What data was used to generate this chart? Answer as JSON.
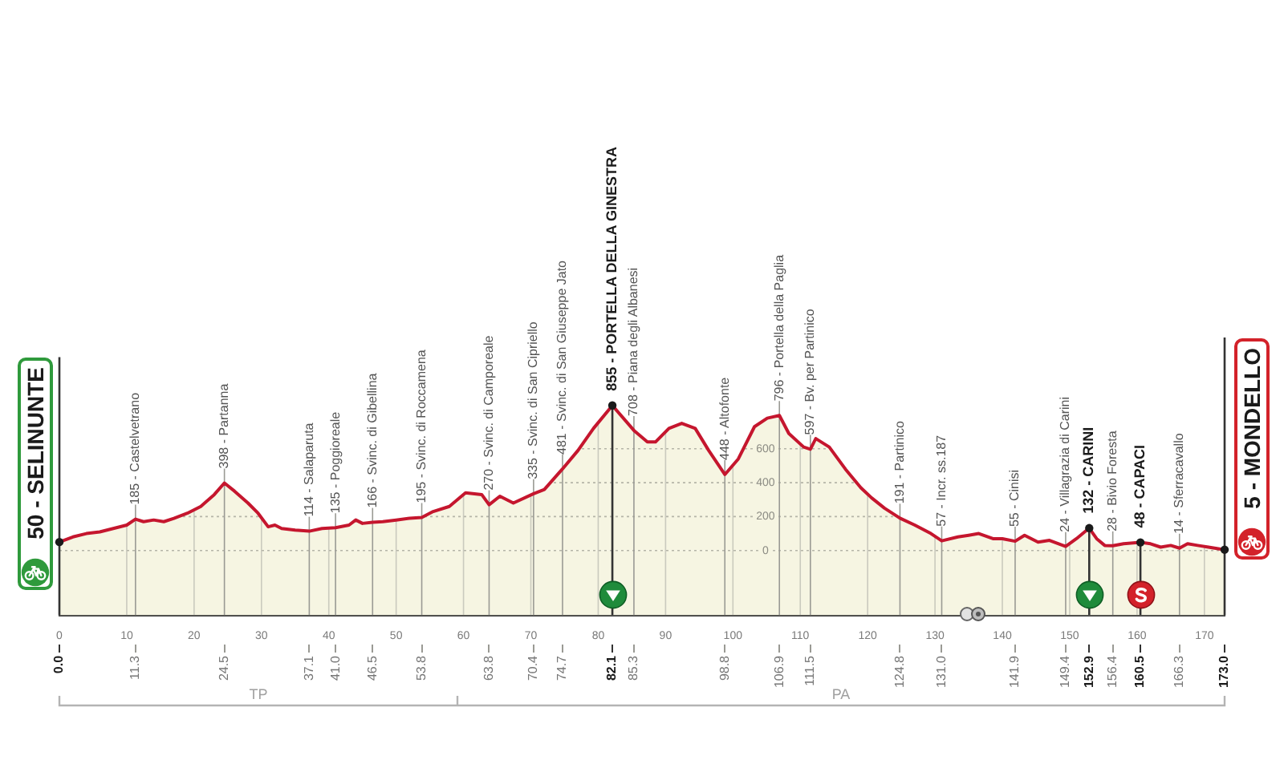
{
  "chart_data": {
    "type": "area",
    "color": "#c5162e",
    "x": [
      0,
      2,
      4,
      6,
      8,
      10,
      11.3,
      12.5,
      14,
      15.5,
      17,
      19,
      21,
      23,
      24.5,
      26,
      28,
      29.5,
      31,
      32,
      33,
      35,
      37.1,
      39,
      41,
      43,
      44,
      45,
      46.5,
      48,
      50,
      52,
      53.8,
      55.5,
      57.9,
      60.3,
      62.7,
      63.8,
      65.4,
      67.4,
      70.4,
      72,
      74.7,
      77,
      79.3,
      82.1,
      85.3,
      87.3,
      88.5,
      90.5,
      92.4,
      94.4,
      96.4,
      98.8,
      100.8,
      103.2,
      105.1,
      106.9,
      108.3,
      110.5,
      111.5,
      112.3,
      114.3,
      116.7,
      119,
      120.6,
      122.5,
      124.8,
      127,
      129.4,
      131,
      133.4,
      135,
      136.5,
      138.6,
      140,
      141.9,
      143.3,
      145.3,
      147,
      149.4,
      151,
      152.9,
      154,
      155.2,
      156.4,
      158,
      160.5,
      162,
      163.5,
      165,
      166.3,
      167.5,
      169,
      170.6,
      173
    ],
    "values": [
      50,
      80,
      100,
      110,
      130,
      150,
      185,
      170,
      180,
      170,
      190,
      220,
      260,
      330,
      398,
      350,
      280,
      220,
      140,
      150,
      130,
      120,
      114,
      130,
      135,
      150,
      180,
      160,
      166,
      170,
      180,
      190,
      195,
      230,
      260,
      340,
      330,
      270,
      320,
      280,
      335,
      360,
      481,
      590,
      720,
      855,
      708,
      640,
      640,
      720,
      750,
      720,
      590,
      448,
      540,
      730,
      780,
      796,
      690,
      610,
      597,
      660,
      610,
      480,
      370,
      310,
      250,
      191,
      150,
      100,
      57,
      80,
      90,
      100,
      70,
      70,
      55,
      90,
      50,
      60,
      24,
      70,
      132,
      70,
      30,
      28,
      40,
      48,
      40,
      20,
      30,
      14,
      40,
      30,
      20,
      5
    ],
    "xlim": [
      0,
      173
    ],
    "xticks": [
      0,
      10,
      20,
      30,
      40,
      50,
      60,
      70,
      80,
      90,
      100,
      110,
      120,
      130,
      140,
      150,
      160,
      170
    ],
    "x2lim": [
      0,
      173
    ],
    "x2ticks": [
      {
        "value": 0,
        "label": "0.0"
      },
      11.3,
      24.5,
      37.1,
      {
        "value": 41,
        "label": "41.0"
      },
      46.5,
      53.8,
      63.8,
      70.4,
      74.7,
      82.1,
      85.3,
      98.8,
      106.9,
      111.5,
      124.8,
      {
        "value": 131,
        "label": "131.0"
      },
      141.9,
      149.4,
      152.9,
      156.4,
      160.5,
      166.3,
      {
        "value": 173,
        "label": "173.0"
      }
    ],
    "ylim": [
      -380,
      2300
    ],
    "yticks": [
      0,
      200,
      400,
      600
    ],
    "grid": true,
    "ref_lines": [
      {
        "axis": "x",
        "value": 0,
        "color": "#333333"
      },
      {
        "axis": "x",
        "value": 82.1,
        "color": "#333333"
      },
      {
        "axis": "x",
        "value": 152.9,
        "color": "#333333"
      },
      {
        "axis": "x",
        "value": 160.5,
        "color": "#333333"
      },
      {
        "axis": "x",
        "value": 173,
        "color": "#333333"
      }
    ],
    "bands": [
      {
        "axis": "y",
        "from": -380,
        "to": 0,
        "color": "#f6f5e2"
      }
    ],
    "annotations": [
      {
        "text": "50 - SELINUNTE",
        "x": 0,
        "y": 50
      },
      {
        "text": "185 - Castelvetrano",
        "x": 11.3,
        "y": 185
      },
      {
        "text": "398 - Partanna",
        "x": 24.5,
        "y": 398
      },
      {
        "text": "114 - Salaparuta",
        "x": 37.1,
        "y": 114
      },
      {
        "text": "135 - Poggioreale",
        "x": 41,
        "y": 135
      },
      {
        "text": "166 - Svinc. di Gibellina",
        "x": 46.5,
        "y": 166
      },
      {
        "text": "195 - Svinc. di Roccamena",
        "x": 53.8,
        "y": 195
      },
      {
        "text": "270 - Svinc. di Camporeale",
        "x": 63.8,
        "y": 270
      },
      {
        "text": "335 - Svinc. di San Cipriello",
        "x": 70.4,
        "y": 335
      },
      {
        "text": "481 - Svinc. di San Giuseppe Jato",
        "x": 74.7,
        "y": 481
      },
      {
        "text": "855 - PORTELLA DELLA GINESTRA",
        "x": 82.1,
        "y": 855
      },
      {
        "text": "708 - Piana degli Albanesi",
        "x": 85.3,
        "y": 708
      },
      {
        "text": "448 - Altofonte",
        "x": 98.8,
        "y": 448
      },
      {
        "text": "796 - Portella della Paglia",
        "x": 106.9,
        "y": 796
      },
      {
        "text": "597 - Bv. per Partinico",
        "x": 111.5,
        "y": 597
      },
      {
        "text": "191 - Partinico",
        "x": 124.8,
        "y": 191
      },
      {
        "text": "57 - Incr. ss.187",
        "x": 131,
        "y": 57
      },
      {
        "text": "55 - Cinisi",
        "x": 141.9,
        "y": 55
      },
      {
        "text": "24 - Villagrazia di Carini",
        "x": 149.4,
        "y": 24
      },
      {
        "text": "132 - CARINI",
        "x": 152.9,
        "y": 132
      },
      {
        "text": "28 - Bivio Foresta",
        "x": 156.4,
        "y": 28
      },
      {
        "text": "48 - CAPACI",
        "x": 160.5,
        "y": 48
      },
      {
        "text": "14 - Sferracavallo",
        "x": 166.3,
        "y": 14
      },
      {
        "text": "5 - MONDELLO",
        "x": 173,
        "y": 5
      },
      "TP",
      "PA"
    ]
  }
}
